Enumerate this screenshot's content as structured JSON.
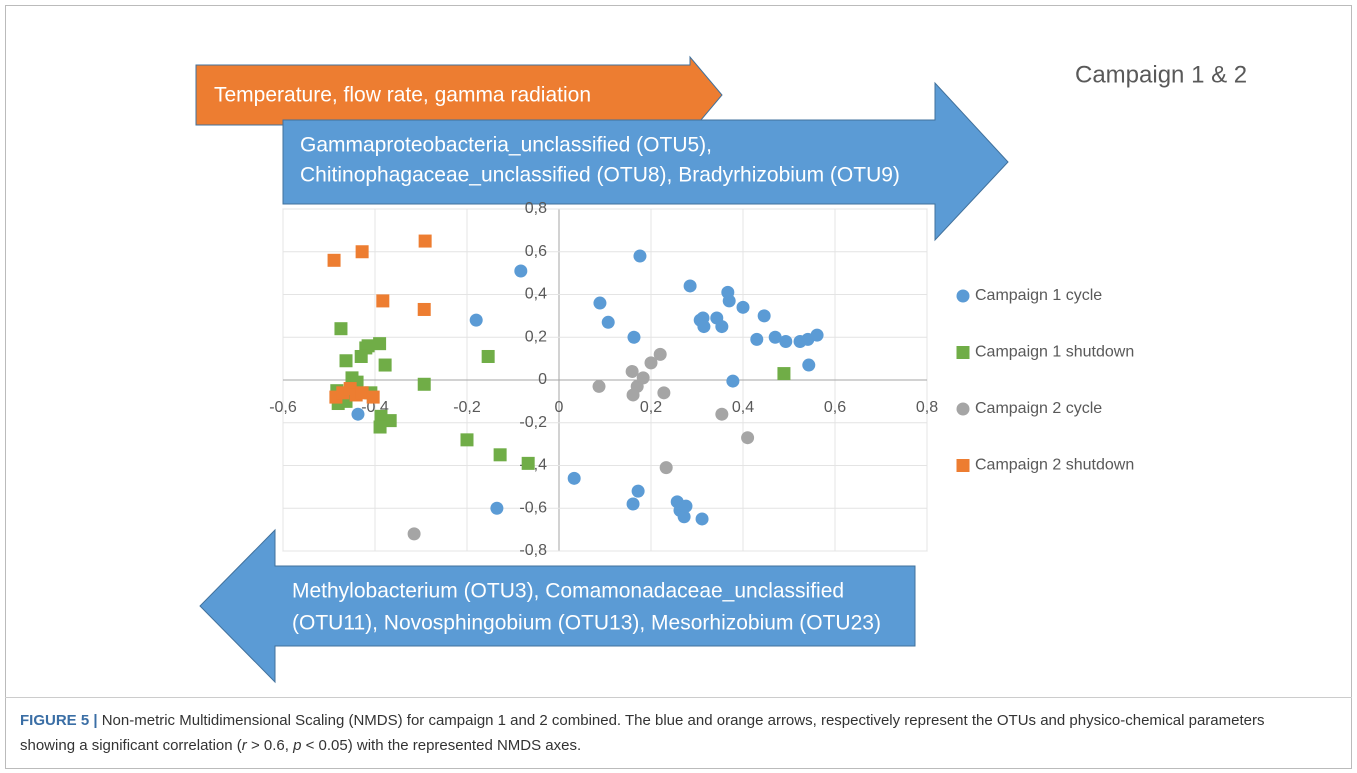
{
  "chart_data": {
    "type": "scatter",
    "title": "Campaign 1 & 2",
    "xlim": [
      -0.6,
      0.8
    ],
    "ylim": [
      -0.8,
      0.8
    ],
    "xticks": [
      {
        "value": -0.6,
        "label": "-0,6"
      },
      {
        "value": -0.4,
        "label": "-0,4"
      },
      {
        "value": -0.2,
        "label": "-0,2"
      },
      0,
      {
        "value": 0.2,
        "label": "0,2"
      },
      {
        "value": 0.4,
        "label": "0,4"
      },
      {
        "value": 0.6,
        "label": "0,6"
      },
      {
        "value": 0.8,
        "label": "0,8"
      }
    ],
    "yticks": [
      {
        "value": -0.8,
        "label": "-0,8"
      },
      {
        "value": -0.6,
        "label": "-0,6"
      },
      {
        "value": -0.4,
        "label": "-0,4"
      },
      {
        "value": -0.2,
        "label": "-0,2"
      },
      0,
      {
        "value": 0.2,
        "label": "0,2"
      },
      {
        "value": 0.4,
        "label": "0,4"
      },
      {
        "value": 0.6,
        "label": "0,6"
      },
      {
        "value": 0.8,
        "label": "0,8"
      }
    ],
    "grid": true,
    "legend": "right",
    "series": [
      {
        "name": "Campaign 1 cycle",
        "color": "#5b9bd5",
        "marker": "circle",
        "x": [
          -0.083,
          0.176,
          -0.18,
          0.089,
          0.107,
          0.163,
          0.285,
          0.367,
          0.37,
          0.307,
          0.313,
          0.315,
          0.343,
          0.354,
          0.4,
          0.446,
          0.43,
          0.47,
          0.493,
          0.524,
          0.541,
          0.561,
          0.543,
          0.378,
          -0.437,
          0.033,
          -0.135,
          0.172,
          0.161,
          0.257,
          0.263,
          0.272,
          0.276,
          0.311
        ],
        "y": [
          0.51,
          0.58,
          0.28,
          0.36,
          0.27,
          0.2,
          0.44,
          0.41,
          0.37,
          0.28,
          0.29,
          0.25,
          0.29,
          0.25,
          0.34,
          0.3,
          0.19,
          0.2,
          0.18,
          0.18,
          0.19,
          0.21,
          0.07,
          -0.005,
          -0.16,
          -0.46,
          -0.6,
          -0.52,
          -0.58,
          -0.57,
          -0.61,
          -0.64,
          -0.59,
          -0.65
        ]
      },
      {
        "name": "Campaign 1 shutdown",
        "color": "#70ad47",
        "marker": "square",
        "x": [
          -0.474,
          -0.463,
          -0.42,
          -0.415,
          -0.39,
          -0.43,
          -0.378,
          -0.45,
          -0.439,
          -0.483,
          -0.48,
          -0.463,
          -0.409,
          -0.387,
          -0.367,
          -0.389,
          -0.293,
          -0.154,
          -0.2,
          -0.128,
          -0.067,
          0.489
        ],
        "y": [
          0.24,
          0.09,
          0.15,
          0.16,
          0.17,
          0.11,
          0.07,
          0.01,
          -0.01,
          -0.05,
          -0.11,
          -0.1,
          -0.06,
          -0.17,
          -0.19,
          -0.22,
          -0.02,
          0.11,
          -0.28,
          -0.35,
          -0.39,
          0.03
        ]
      },
      {
        "name": "Campaign 2 cycle",
        "color": "#a5a5a5",
        "marker": "circle",
        "x": [
          0.087,
          0.159,
          0.17,
          0.161,
          0.183,
          0.2,
          0.22,
          0.228,
          0.354,
          0.41,
          0.233,
          -0.315
        ],
        "y": [
          -0.03,
          0.04,
          -0.03,
          -0.07,
          0.01,
          0.08,
          0.12,
          -0.06,
          -0.16,
          -0.27,
          -0.41,
          -0.72
        ]
      },
      {
        "name": "Campaign 2 shutdown",
        "color": "#ed7d31",
        "marker": "square",
        "x": [
          -0.489,
          -0.428,
          -0.291,
          -0.383,
          -0.293,
          -0.485,
          -0.47,
          -0.454,
          -0.441,
          -0.428,
          -0.404
        ],
        "y": [
          0.56,
          0.6,
          0.65,
          0.37,
          0.33,
          -0.08,
          -0.06,
          -0.04,
          -0.07,
          -0.06,
          -0.08
        ]
      }
    ],
    "annotations": [
      {
        "lines": [
          "Temperature, flow rate, gamma radiation"
        ],
        "color": "#ed7d31",
        "direction": "right"
      },
      {
        "lines": [
          "Gammaproteobacteria_unclassified (OTU5),",
          "Chitinophagaceae_unclassified (OTU8), Bradyrhizobium (OTU9)"
        ],
        "color": "#5b9bd5",
        "direction": "right"
      },
      {
        "lines": [
          "Methylobacterium (OTU3), Comamonadaceae_unclassified",
          "(OTU11), Novosphingobium (OTU13), Mesorhizobium (OTU23)"
        ],
        "color": "#5b9bd5",
        "direction": "left"
      }
    ]
  },
  "caption": {
    "label": "FIGURE 5 |",
    "parts": [
      " Non-metric Multidimensional Scaling (NMDS) for campaign 1 and 2 combined. The blue and orange arrows, respectively represent the OTUs and physico-chemical parameters showing a significant correlation (",
      "r",
      " > 0.6, ",
      "p",
      " < 0.05) with the represented NMDS axes."
    ]
  }
}
